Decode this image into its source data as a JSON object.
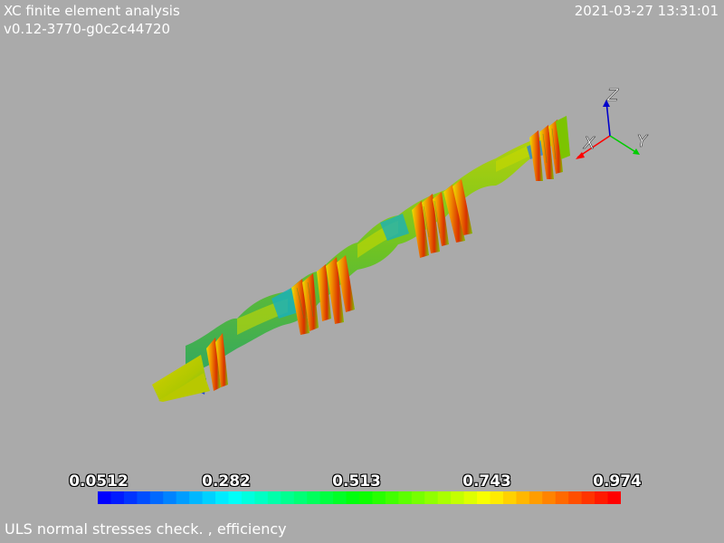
{
  "app": {
    "title": "XC finite element analysis",
    "version": "v0.12-3770-g0c2c44720",
    "timestamp": "2021-03-27 13:31:01"
  },
  "scalar_bar": {
    "tick_labels": [
      "0.0512",
      "0.282",
      "0.513",
      "0.743",
      "0.974"
    ],
    "min_color": "#0000ff",
    "max_color": "#ff0000"
  },
  "axes": {
    "x_label": "X",
    "y_label": "Y",
    "z_label": "Z",
    "x_color": "#ff0000",
    "y_color": "#00cc00",
    "z_color": "#0000cc"
  },
  "caption": "ULS normal stresses check. , efficiency",
  "colors": {
    "background": "#aaaaaa",
    "text": "#ffffff"
  }
}
